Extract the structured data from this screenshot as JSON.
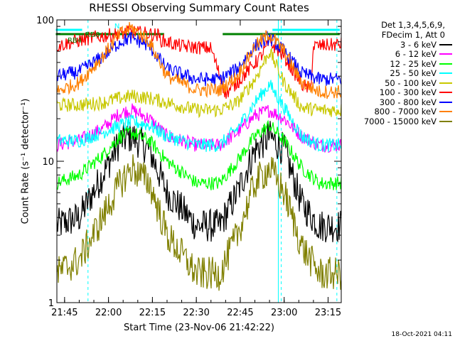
{
  "chart_data": {
    "type": "line",
    "title": "RHESSI Observing Summary Count Rates",
    "xlabel": "Start Time (23-Nov-06 21:42:22)",
    "ylabel": "Count Rate (s⁻¹ detector⁻¹)",
    "yscale": "log",
    "ylim": [
      1,
      100
    ],
    "xlim": [
      "21:42:22",
      "23:19:30"
    ],
    "x_ticks": [
      "21:45",
      "22:00",
      "22:15",
      "22:30",
      "22:45",
      "23:00",
      "23:15"
    ],
    "y_ticks": [
      "1",
      "10",
      "100"
    ],
    "legend_title": [
      "Det 1,3,4,5,6,9,",
      "FDecim 1, Att 0"
    ],
    "legend_position": "right",
    "series": [
      {
        "name": "3 - 6 keV",
        "color": "#000000",
        "x": [
          "21:42",
          "21:50",
          "21:58",
          "22:04",
          "22:08",
          "22:14",
          "22:20",
          "22:30",
          "22:38",
          "22:44",
          "22:50",
          "22:55",
          "23:00",
          "23:06",
          "23:12",
          "23:19"
        ],
        "y": [
          3.5,
          4,
          8,
          14,
          15,
          12,
          6,
          3.5,
          3.5,
          6,
          12,
          15,
          12,
          5,
          3.5,
          3.5
        ]
      },
      {
        "name": "6 - 12 keV",
        "color": "#ff00ff",
        "x": [
          "21:42",
          "21:50",
          "21:58",
          "22:04",
          "22:08",
          "22:14",
          "22:20",
          "22:30",
          "22:38",
          "22:44",
          "22:50",
          "22:55",
          "23:00",
          "23:06",
          "23:12",
          "23:19"
        ],
        "y": [
          13,
          14,
          17,
          22,
          23,
          20,
          15,
          13,
          13,
          16,
          21,
          23,
          20,
          15,
          13,
          13
        ]
      },
      {
        "name": "12 - 25 keV",
        "color": "#00ff00",
        "x": [
          "21:42",
          "21:50",
          "21:58",
          "22:04",
          "22:08",
          "22:14",
          "22:20",
          "22:30",
          "22:38",
          "22:44",
          "22:50",
          "22:55",
          "23:00",
          "23:06",
          "23:12",
          "23:19"
        ],
        "y": [
          7,
          8,
          11,
          15,
          16,
          14,
          10,
          7,
          7,
          10,
          15,
          18,
          14,
          9,
          7,
          7
        ]
      },
      {
        "name": "25 - 50 keV",
        "color": "#00ffff",
        "x": [
          "21:42",
          "21:50",
          "21:58",
          "22:04",
          "22:08",
          "22:14",
          "22:20",
          "22:30",
          "22:38",
          "22:44",
          "22:50",
          "22:55",
          "23:00",
          "23:06",
          "23:12",
          "23:19"
        ],
        "y": [
          14,
          14,
          16,
          18,
          19,
          18,
          15,
          13,
          13,
          17,
          26,
          35,
          24,
          15,
          13,
          13
        ]
      },
      {
        "name": "50 - 100 keV",
        "color": "#c8c800",
        "x": [
          "21:42",
          "21:50",
          "21:58",
          "22:04",
          "22:08",
          "22:14",
          "22:20",
          "22:30",
          "22:38",
          "22:44",
          "22:50",
          "22:55",
          "23:00",
          "23:06",
          "23:12",
          "23:19"
        ],
        "y": [
          25,
          25,
          26,
          28,
          29,
          28,
          26,
          23,
          23,
          26,
          38,
          60,
          36,
          24,
          23,
          23
        ]
      },
      {
        "name": "100 - 300 keV",
        "color": "#ff0000",
        "x": [
          "21:42",
          "21:48",
          "21:55",
          "22:04",
          "22:08",
          "22:13",
          "22:17",
          "22:18",
          "22:25",
          "22:35",
          "22:40",
          "22:45",
          "22:52",
          "22:55",
          "23:00",
          "23:06",
          "23:09",
          "23:10",
          "23:19"
        ],
        "y": [
          65,
          70,
          75,
          80,
          82,
          80,
          78,
          72,
          65,
          63,
          30,
          38,
          55,
          70,
          55,
          35,
          32,
          65,
          67
        ]
      },
      {
        "name": "300 - 800 keV",
        "color": "#0000ff",
        "x": [
          "21:42",
          "21:50",
          "21:58",
          "22:04",
          "22:08",
          "22:14",
          "22:20",
          "22:30",
          "22:38",
          "22:44",
          "22:50",
          "22:55",
          "23:00",
          "23:06",
          "23:12",
          "23:19"
        ],
        "y": [
          40,
          43,
          55,
          70,
          75,
          65,
          45,
          38,
          38,
          45,
          65,
          75,
          60,
          42,
          38,
          38
        ]
      },
      {
        "name": "800 - 7000 keV",
        "color": "#ff8000",
        "x": [
          "21:42",
          "21:50",
          "21:58",
          "22:04",
          "22:08",
          "22:14",
          "22:20",
          "22:30",
          "22:38",
          "22:44",
          "22:50",
          "22:55",
          "23:00",
          "23:06",
          "23:12",
          "23:19"
        ],
        "y": [
          31,
          36,
          55,
          80,
          88,
          70,
          40,
          32,
          32,
          40,
          65,
          80,
          60,
          36,
          31,
          31
        ]
      },
      {
        "name": "7000 - 15000 keV",
        "color": "#808000",
        "x": [
          "21:42",
          "21:50",
          "21:58",
          "22:04",
          "22:08",
          "22:14",
          "22:20",
          "22:30",
          "22:38",
          "22:44",
          "22:50",
          "22:55",
          "23:00",
          "23:06",
          "23:12",
          "23:19"
        ],
        "y": [
          1.6,
          2,
          4,
          7,
          9,
          7,
          3,
          1.6,
          1.6,
          3,
          7,
          9,
          6,
          2.5,
          1.6,
          1.6
        ]
      }
    ],
    "annotations": [
      {
        "text": "N",
        "color": "#00ffff",
        "x": "22:02"
      },
      {
        "text": "RD0",
        "color": "#008000",
        "x": "21:52"
      },
      {
        "text": "RB4",
        "color": "#008000",
        "x": "21:46"
      }
    ],
    "flag_bars": [
      {
        "color": "#00ffff",
        "x": [
          [
            "21:42",
            "21:51"
          ],
          [
            "22:56",
            "23:19"
          ]
        ]
      },
      {
        "color": "#008000",
        "x": [
          [
            "21:42",
            "22:19"
          ],
          [
            "22:39",
            "23:19"
          ]
        ]
      }
    ],
    "vertical_lines": {
      "solid": {
        "color": "#00ffff",
        "x": [
          "21:42:22",
          "22:58"
        ]
      },
      "dashed": {
        "color": "#00ffff",
        "x": [
          "21:53",
          "22:59",
          "23:18"
        ]
      }
    }
  },
  "footer": "18-Oct-2021 04:11"
}
